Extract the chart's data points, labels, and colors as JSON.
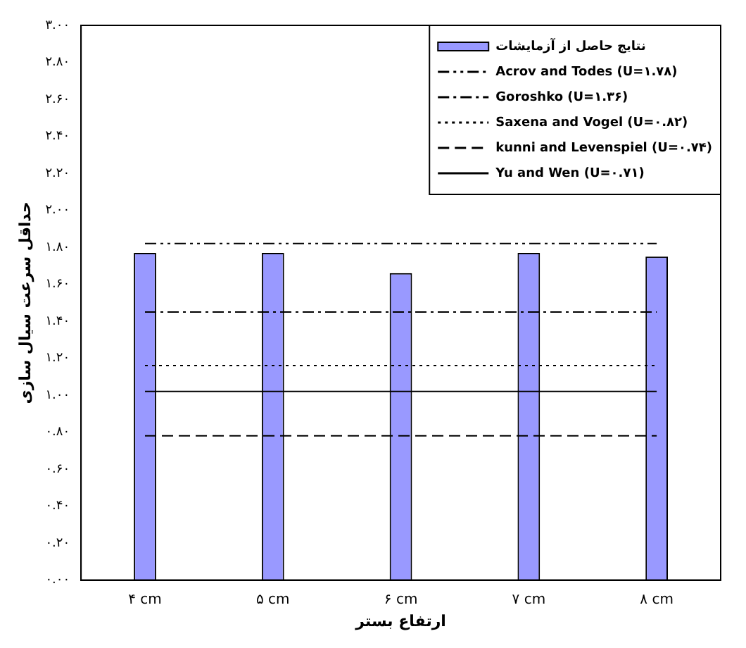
{
  "chart_data": {
    "type": "bar",
    "xlabel": "ارتفاع بستر",
    "ylabel": "حداقل سرعت سیال سازی",
    "categories": [
      "۴ cm",
      "۵ cm",
      "۶ cm",
      "۷ cm",
      "۸ cm"
    ],
    "series": [
      {
        "name": "نتایج حاصل از آزمایشات",
        "color": "#9999ff",
        "values": [
          1.77,
          1.77,
          1.66,
          1.77,
          1.75
        ]
      },
      {
        "name": "Acrov and Todes (U=۱.۷۸)",
        "type": "line",
        "color": "#000000",
        "line_style": "dashdotdot",
        "values": [
          1.82,
          1.82,
          1.82,
          1.82,
          1.82
        ]
      },
      {
        "name": "Goroshko (U=۱.۳۶)",
        "type": "line",
        "color": "#000000",
        "line_style": "dashdot",
        "values": [
          1.45,
          1.45,
          1.45,
          1.45,
          1.45
        ]
      },
      {
        "name": "Saxena and Vogel (U=۰.۸۲)",
        "type": "line",
        "color": "#000000",
        "line_style": "dotted",
        "values": [
          1.16,
          1.16,
          1.16,
          1.16,
          1.16
        ]
      },
      {
        "name": "kunni and Levenspiel (U=۰.۷۴)",
        "type": "line",
        "color": "#000000",
        "line_style": "dashed",
        "values": [
          0.78,
          0.78,
          0.78,
          0.78,
          0.78
        ]
      },
      {
        "name": "Yu and Wen (U=۰.۷۱)",
        "type": "line",
        "color": "#000000",
        "line_style": "solid",
        "values": [
          1.02,
          1.02,
          1.02,
          1.02,
          1.02
        ]
      }
    ],
    "ylim": [
      0,
      3
    ],
    "yticks": [
      {
        "value": 0,
        "label": "۰.۰۰"
      },
      {
        "value": 0.2,
        "label": "۰.۲۰"
      },
      {
        "value": 0.4,
        "label": "۰.۴۰"
      },
      {
        "value": 0.6,
        "label": "۰.۶۰"
      },
      {
        "value": 0.8,
        "label": "۰.۸۰"
      },
      {
        "value": 1,
        "label": "۱.۰۰"
      },
      {
        "value": 1.2,
        "label": "۱.۲۰"
      },
      {
        "value": 1.4,
        "label": "۱.۴۰"
      },
      {
        "value": 1.6,
        "label": "۱.۶۰"
      },
      {
        "value": 1.8,
        "label": "۱.۸۰"
      },
      {
        "value": 2,
        "label": "۲.۰۰"
      },
      {
        "value": 2.2,
        "label": "۲.۲۰"
      },
      {
        "value": 2.4,
        "label": "۲.۴۰"
      },
      {
        "value": 2.6,
        "label": "۲.۶۰"
      },
      {
        "value": 2.8,
        "label": "۲.۸۰"
      },
      {
        "value": 3,
        "label": "۳.۰۰"
      }
    ],
    "grid": false,
    "legend": "top right",
    "marker": "none"
  }
}
